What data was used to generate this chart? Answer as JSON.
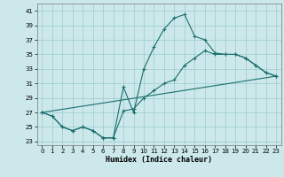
{
  "xlabel": "Humidex (Indice chaleur)",
  "bg_color": "#cce8ea",
  "grid_color": "#99cccc",
  "line_color": "#1a6e6e",
  "xlim": [
    -0.5,
    23.5
  ],
  "ylim": [
    22.5,
    42
  ],
  "yticks": [
    23,
    25,
    27,
    29,
    31,
    33,
    35,
    37,
    39,
    41
  ],
  "xticks": [
    0,
    1,
    2,
    3,
    4,
    5,
    6,
    7,
    8,
    9,
    10,
    11,
    12,
    13,
    14,
    15,
    16,
    17,
    18,
    19,
    20,
    21,
    22,
    23
  ],
  "line1_x": [
    0,
    1,
    2,
    3,
    4,
    5,
    6,
    7,
    8,
    9,
    10,
    11,
    12,
    13,
    14,
    15,
    16,
    17,
    18,
    19,
    20,
    21,
    22,
    23
  ],
  "line1_y": [
    27,
    26.5,
    25,
    24.5,
    25,
    24.5,
    23.5,
    23.5,
    30.5,
    27,
    33,
    36,
    38.5,
    40,
    40.5,
    37.5,
    37,
    35.2,
    35,
    35,
    34.5,
    33.5,
    32.5,
    32
  ],
  "line2_x": [
    0,
    1,
    2,
    3,
    4,
    5,
    6,
    7,
    8,
    9,
    10,
    11,
    12,
    13,
    14,
    15,
    16,
    17,
    18,
    19,
    20,
    21,
    22,
    23
  ],
  "line2_y": [
    27,
    26.5,
    25,
    24.5,
    25,
    24.5,
    23.5,
    23.5,
    27.2,
    27.5,
    29,
    30,
    31,
    31.5,
    33.5,
    34.5,
    35.5,
    35,
    35,
    35,
    34.5,
    33.5,
    32.5,
    32
  ],
  "line3_x": [
    0,
    23
  ],
  "line3_y": [
    27,
    32
  ]
}
